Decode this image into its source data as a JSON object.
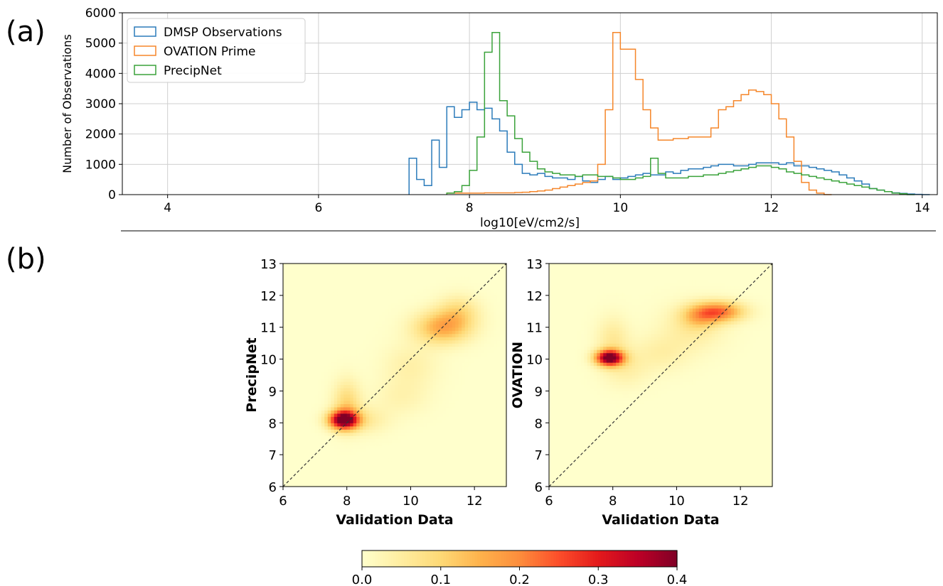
{
  "panel_labels": {
    "a": "(a)",
    "b": "(b)"
  },
  "colors": {
    "dmsp": "#2b7bba",
    "ovation": "#f5862a",
    "precipnet": "#3aa23a",
    "grid": "#cfcfcf",
    "diagonal": "#333333"
  },
  "chart_data": [
    {
      "type": "histogram",
      "xlabel": "log10[eV/cm2/s]",
      "ylabel": "Number of Observations",
      "xlim": [
        3.4,
        14.2
      ],
      "ylim": [
        0,
        6000
      ],
      "xticks": [
        4,
        6,
        8,
        10,
        12,
        14
      ],
      "yticks": [
        0,
        1000,
        2000,
        3000,
        4000,
        5000,
        6000
      ],
      "grid": true,
      "legend_position": "top-left",
      "bin_width": 0.1,
      "series": [
        {
          "name": "DMSP Observations",
          "color": "#2b7bba",
          "start": 7.2,
          "values": [
            1200,
            500,
            300,
            1800,
            900,
            2900,
            2550,
            2800,
            3050,
            2800,
            2850,
            2500,
            2100,
            1400,
            1000,
            700,
            650,
            700,
            600,
            550,
            550,
            500,
            600,
            450,
            400,
            500,
            600,
            500,
            550,
            600,
            650,
            700,
            650,
            650,
            750,
            700,
            800,
            850,
            850,
            900,
            950,
            1000,
            1000,
            950,
            950,
            1000,
            1050,
            1050,
            1050,
            1000,
            1050,
            950,
            950,
            900,
            850,
            800,
            750,
            650,
            550,
            450,
            350,
            200,
            150,
            100,
            60,
            40,
            20,
            10,
            0
          ]
        },
        {
          "name": "OVATION Prime",
          "color": "#f5862a",
          "start": 7.7,
          "values": [
            50,
            50,
            50,
            50,
            50,
            60,
            60,
            60,
            60,
            70,
            80,
            100,
            120,
            150,
            200,
            250,
            300,
            350,
            400,
            450,
            1000,
            2800,
            5350,
            4800,
            4800,
            3800,
            2800,
            2200,
            1800,
            1800,
            1850,
            1850,
            1900,
            1900,
            1900,
            2200,
            2800,
            2900,
            3100,
            3300,
            3450,
            3400,
            3300,
            3000,
            2500,
            1900,
            1100,
            400,
            150,
            50,
            0
          ]
        },
        {
          "name": "PrecipNet",
          "color": "#3aa23a",
          "start": 7.7,
          "values": [
            50,
            100,
            300,
            800,
            1900,
            4700,
            5350,
            3100,
            2600,
            1850,
            1400,
            1100,
            850,
            750,
            700,
            650,
            650,
            600,
            650,
            650,
            600,
            600,
            550,
            500,
            500,
            550,
            600,
            1200,
            700,
            550,
            550,
            550,
            600,
            600,
            650,
            650,
            700,
            750,
            800,
            850,
            900,
            950,
            950,
            900,
            850,
            750,
            700,
            650,
            600,
            550,
            500,
            450,
            400,
            350,
            300,
            250,
            200,
            150,
            100,
            50,
            30,
            0
          ]
        }
      ]
    },
    {
      "type": "heatmap",
      "xlabel": "Validation Data",
      "ylabel": "PrecipNet",
      "xlim": [
        6,
        13
      ],
      "ylim": [
        6,
        13
      ],
      "xticks": [
        6,
        8,
        10,
        12
      ],
      "yticks": [
        6,
        7,
        8,
        9,
        10,
        11,
        12,
        13
      ],
      "diagonal": true,
      "blobs": [
        {
          "x": 7.9,
          "y": 8.1,
          "sx": 0.32,
          "sy": 0.2,
          "density": 0.42
        },
        {
          "x": 8.0,
          "y": 8.6,
          "sx": 0.3,
          "sy": 0.5,
          "density": 0.1
        },
        {
          "x": 8.6,
          "y": 8.1,
          "sx": 0.5,
          "sy": 0.3,
          "density": 0.05
        },
        {
          "x": 9.7,
          "y": 8.8,
          "sx": 0.6,
          "sy": 0.4,
          "density": 0.03
        },
        {
          "x": 10.0,
          "y": 9.8,
          "sx": 0.6,
          "sy": 0.5,
          "density": 0.04
        },
        {
          "x": 11.0,
          "y": 11.0,
          "sx": 0.6,
          "sy": 0.35,
          "density": 0.16
        },
        {
          "x": 11.5,
          "y": 11.5,
          "sx": 0.45,
          "sy": 0.35,
          "density": 0.08
        }
      ]
    },
    {
      "type": "heatmap",
      "xlabel": "Validation Data",
      "ylabel": "OVATION",
      "xlim": [
        6,
        13
      ],
      "ylim": [
        6,
        13
      ],
      "xticks": [
        6,
        8,
        10,
        12
      ],
      "yticks": [
        6,
        7,
        8,
        9,
        10,
        11,
        12,
        13
      ],
      "diagonal": true,
      "blobs": [
        {
          "x": 7.9,
          "y": 10.05,
          "sx": 0.3,
          "sy": 0.17,
          "density": 0.42
        },
        {
          "x": 8.0,
          "y": 10.6,
          "sx": 0.35,
          "sy": 0.5,
          "density": 0.06
        },
        {
          "x": 8.4,
          "y": 9.7,
          "sx": 0.5,
          "sy": 0.4,
          "density": 0.04
        },
        {
          "x": 9.5,
          "y": 10.2,
          "sx": 0.6,
          "sy": 0.4,
          "density": 0.04
        },
        {
          "x": 10.5,
          "y": 11.0,
          "sx": 0.7,
          "sy": 0.5,
          "density": 0.05
        },
        {
          "x": 11.3,
          "y": 11.5,
          "sx": 0.55,
          "sy": 0.22,
          "density": 0.22
        },
        {
          "x": 10.7,
          "y": 11.3,
          "sx": 0.4,
          "sy": 0.25,
          "density": 0.08
        }
      ]
    }
  ],
  "colorbar": {
    "min": 0,
    "max": 0.4,
    "ticks": [
      "0.0",
      "0.1",
      "0.2",
      "0.3",
      "0.4"
    ]
  }
}
